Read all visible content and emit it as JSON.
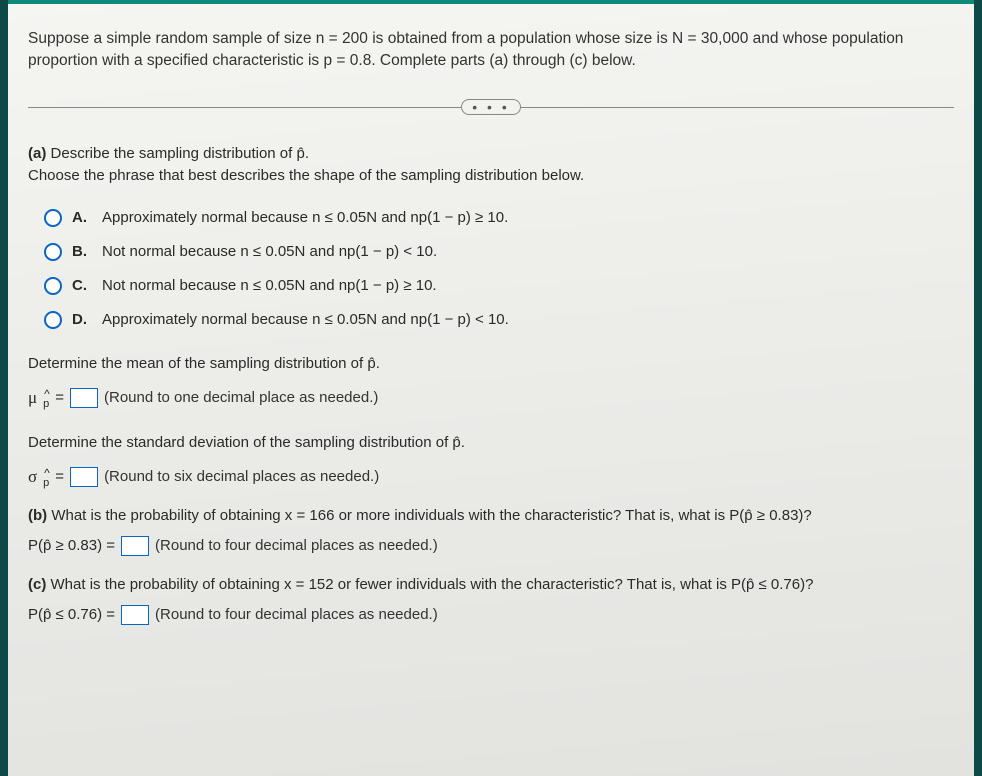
{
  "intro": "Suppose a simple random sample of size n = 200 is obtained from a population whose size is N = 30,000 and whose population proportion with a specified characteristic is p = 0.8. Complete parts (a) through (c) below.",
  "separator_dots": "• • •",
  "partA": {
    "lead_label": "(a)",
    "lead_line1": "Describe the sampling distribution of p̂.",
    "lead_line2": "Choose the phrase that best describes the shape of the sampling distribution below.",
    "options": [
      {
        "letter": "A.",
        "text": "Approximately normal because n ≤ 0.05N and np(1 − p) ≥ 10."
      },
      {
        "letter": "B.",
        "text": "Not normal because n ≤ 0.05N and np(1 − p) < 10."
      },
      {
        "letter": "C.",
        "text": "Not normal because n ≤ 0.05N and np(1 − p) ≥ 10."
      },
      {
        "letter": "D.",
        "text": "Approximately normal because n ≤ 0.05N and np(1 − p) < 10."
      }
    ],
    "mean_head": "Determine the mean of the sampling distribution of p̂.",
    "mean_symbol": "μ",
    "mean_sub": "p̂",
    "mean_equals": "=",
    "mean_hint": "(Round to one decimal place as needed.)",
    "sd_head": "Determine the standard deviation of the sampling distribution of p̂.",
    "sd_symbol": "σ",
    "sd_sub": "p̂",
    "sd_equals": "=",
    "sd_hint": "(Round to six decimal places as needed.)"
  },
  "partB": {
    "label": "(b)",
    "question": "What is the probability of obtaining x = 166 or more individuals with the characteristic? That is, what is P(p̂ ≥ 0.83)?",
    "lhs": "P(p̂ ≥ 0.83) =",
    "hint": "(Round to four decimal places as needed.)"
  },
  "partC": {
    "label": "(c)",
    "question": "What is the probability of obtaining x = 152 or fewer individuals with the characteristic? That is, what is P(p̂ ≤ 0.76)?",
    "lhs": "P(p̂ ≤ 0.76) =",
    "hint": "(Round to four decimal places as needed.)"
  },
  "colors": {
    "header_bar": "#0d8a7a",
    "page_bg": "#ededea",
    "radio_border": "#0a66c2",
    "input_border": "#0a66c2",
    "text": "#2a2a2a"
  }
}
